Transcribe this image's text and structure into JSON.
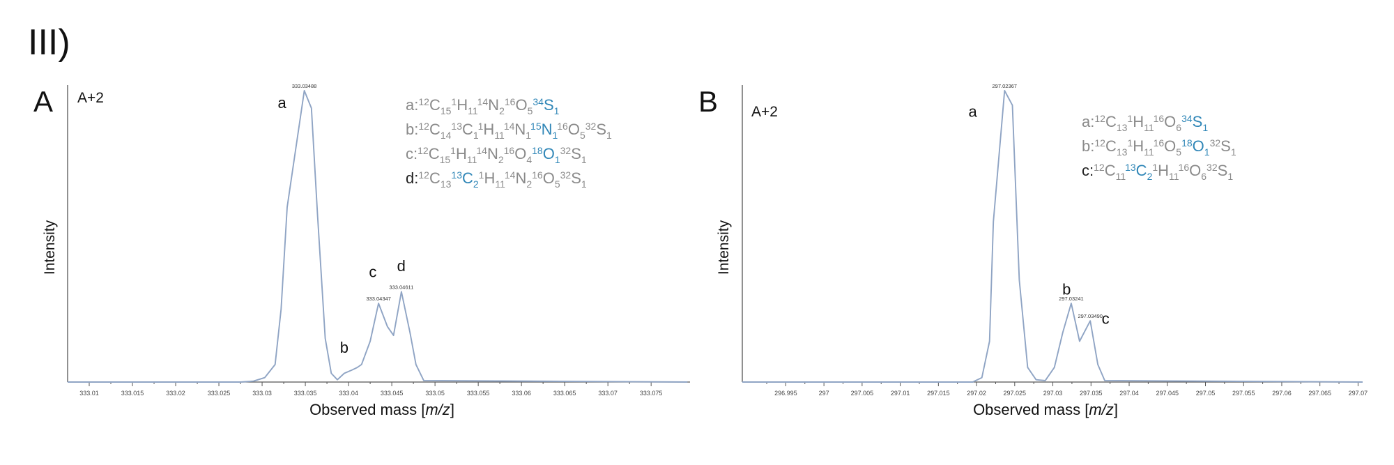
{
  "figure_label": "III)",
  "colors": {
    "trace": "#8fa4c4",
    "highlight": "#2f86b7",
    "formula_text": "#8a8a8a",
    "axis": "#555555"
  },
  "chart_data": [
    {
      "type": "line",
      "panel_label": "A",
      "corner_label": "A+2",
      "xlabel": "Observed mass",
      "xlabel_unit": "m/z",
      "ylabel": "Intensity",
      "xlim": [
        333.0075,
        333.0795
      ],
      "ylim": [
        0,
        100
      ],
      "xticks": [
        "333.01",
        "333.015",
        "333.02",
        "333.025",
        "333.03",
        "333.035",
        "333.04",
        "333.045",
        "333.05",
        "333.055",
        "333.06",
        "333.065",
        "333.07",
        "333.075"
      ],
      "series": [
        {
          "x": [
            333.0075,
            333.025,
            333.0275,
            333.029,
            333.0303,
            333.0315,
            333.0322,
            333.0329,
            333.03488,
            333.0357,
            333.0364,
            333.0373,
            333.038,
            333.0387,
            333.0395,
            333.0403,
            333.041,
            333.0415,
            333.0425,
            333.04347,
            333.0445,
            333.0452,
            333.04611,
            333.0471,
            333.0478,
            333.0487,
            333.0792
          ],
          "y": [
            0,
            0,
            0,
            0.3,
            1.5,
            6,
            25,
            60,
            100,
            94,
            58,
            15,
            3,
            0.8,
            3,
            4,
            5,
            6,
            14,
            27,
            19,
            16,
            31,
            17,
            6,
            0.5,
            0
          ]
        }
      ],
      "peak_labels": [
        {
          "x": 333.03488,
          "y": 100,
          "text": "333.03488"
        },
        {
          "x": 333.04347,
          "y": 27,
          "text": "333.04347"
        },
        {
          "x": 333.04611,
          "y": 31,
          "text": "333.04611"
        }
      ],
      "annotations": [
        {
          "text": "a",
          "x": 333.0323,
          "y": 94
        },
        {
          "text": "b",
          "x": 333.0395,
          "y": 10
        },
        {
          "text": "c",
          "x": 333.0428,
          "y": 36
        },
        {
          "text": "d",
          "x": 333.0461,
          "y": 38
        }
      ],
      "legend": [
        {
          "label": "a",
          "formula": "a:¹²C₁₅¹H₁₁¹⁴N₂¹⁶O₅³⁴S₁",
          "parts": [
            [
              "a:",
              "p"
            ],
            [
              "12",
              "s"
            ],
            [
              "C",
              "p"
            ],
            [
              "15",
              "b"
            ],
            [
              "1",
              "s"
            ],
            [
              "H",
              "p"
            ],
            [
              "11",
              "b"
            ],
            [
              "14",
              "s"
            ],
            [
              "N",
              "p"
            ],
            [
              "2",
              "b"
            ],
            [
              "16",
              "s"
            ],
            [
              "O",
              "p"
            ],
            [
              "5",
              "b"
            ],
            [
              "34",
              "s",
              "h"
            ],
            [
              "S",
              "p",
              "h"
            ],
            [
              "1",
              "b",
              "h"
            ]
          ]
        },
        {
          "label": "b",
          "formula": "b:¹²C₁₄¹³C₁¹H₁₁¹⁴N₁¹⁵N₁¹⁶O₅³²S₁",
          "parts": [
            [
              "b:",
              "p"
            ],
            [
              "12",
              "s"
            ],
            [
              "C",
              "p"
            ],
            [
              "14",
              "b"
            ],
            [
              "13",
              "s"
            ],
            [
              "C",
              "p"
            ],
            [
              "1",
              "b"
            ],
            [
              "1",
              "s"
            ],
            [
              "H",
              "p"
            ],
            [
              "11",
              "b"
            ],
            [
              "14",
              "s"
            ],
            [
              "N",
              "p"
            ],
            [
              "1",
              "b"
            ],
            [
              "15",
              "s",
              "h"
            ],
            [
              "N",
              "p",
              "h"
            ],
            [
              "1",
              "b",
              "h"
            ],
            [
              "16",
              "s"
            ],
            [
              "O",
              "p"
            ],
            [
              "5",
              "b"
            ],
            [
              "32",
              "s"
            ],
            [
              "S",
              "p"
            ],
            [
              "1",
              "b"
            ]
          ]
        },
        {
          "label": "c",
          "formula": "c:¹²C₁₅¹H₁₁¹⁴N₂¹⁶O₄¹⁸O₁³²S₁",
          "parts": [
            [
              "c:",
              "p"
            ],
            [
              "12",
              "s"
            ],
            [
              "C",
              "p"
            ],
            [
              "15",
              "b"
            ],
            [
              "1",
              "s"
            ],
            [
              "H",
              "p"
            ],
            [
              "11",
              "b"
            ],
            [
              "14",
              "s"
            ],
            [
              "N",
              "p"
            ],
            [
              "2",
              "b"
            ],
            [
              "16",
              "s"
            ],
            [
              "O",
              "p"
            ],
            [
              "4",
              "b"
            ],
            [
              "18",
              "s",
              "h"
            ],
            [
              "O",
              "p",
              "h"
            ],
            [
              "1",
              "b",
              "h"
            ],
            [
              "32",
              "s"
            ],
            [
              "S",
              "p"
            ],
            [
              "1",
              "b"
            ]
          ]
        },
        {
          "label": "d",
          "formula": "d:¹²C₁₃¹³C₂¹H₁₁¹⁴N₂¹⁶O₅³²S₁",
          "parts": [
            [
              "d:",
              "p",
              "k"
            ],
            [
              "12",
              "s"
            ],
            [
              "C",
              "p"
            ],
            [
              "13",
              "b"
            ],
            [
              "13",
              "s",
              "h"
            ],
            [
              "C",
              "p",
              "h"
            ],
            [
              "2",
              "b",
              "h"
            ],
            [
              "1",
              "s"
            ],
            [
              "H",
              "p"
            ],
            [
              "11",
              "b"
            ],
            [
              "14",
              "s"
            ],
            [
              "N",
              "p"
            ],
            [
              "2",
              "b"
            ],
            [
              "16",
              "s"
            ],
            [
              "O",
              "p"
            ],
            [
              "5",
              "b"
            ],
            [
              "32",
              "s"
            ],
            [
              "S",
              "p"
            ],
            [
              "1",
              "b"
            ]
          ]
        }
      ]
    },
    {
      "type": "line",
      "panel_label": "B",
      "corner_label": "A+2",
      "xlabel": "Observed mass",
      "xlabel_unit": "m/z",
      "ylabel": "Intensity",
      "xlim": [
        296.9893,
        297.0706
      ],
      "ylim": [
        0,
        100
      ],
      "xticks": [
        "296.995",
        "297",
        "297.005",
        "297.01",
        "297.015",
        "297.02",
        "297.025",
        "297.03",
        "297.035",
        "297.04",
        "297.045",
        "297.05",
        "297.055",
        "297.06",
        "297.065",
        "297.07"
      ],
      "series": [
        {
          "x": [
            296.9893,
            297.0195,
            297.0207,
            297.0217,
            297.0222,
            297.02367,
            297.0247,
            297.0256,
            297.0267,
            297.0278,
            297.029,
            297.0302,
            297.0313,
            297.03241,
            297.0335,
            297.0343,
            297.0349,
            297.0359,
            297.0368,
            297.0706
          ],
          "y": [
            0,
            0,
            1.5,
            14,
            55,
            100,
            95,
            35,
            5,
            0.8,
            0.5,
            5,
            17,
            27,
            14,
            18,
            21,
            6,
            0.5,
            0
          ]
        }
      ],
      "peak_labels": [
        {
          "x": 297.02367,
          "y": 100,
          "text": "297.02367"
        },
        {
          "x": 297.03241,
          "y": 27,
          "text": "297.03241"
        },
        {
          "x": 297.0349,
          "y": 21,
          "text": "297.03490"
        }
      ],
      "annotations": [
        {
          "text": "a",
          "x": 297.0195,
          "y": 91
        },
        {
          "text": "b",
          "x": 297.0318,
          "y": 30
        },
        {
          "text": "c",
          "x": 297.0369,
          "y": 20
        }
      ],
      "legend": [
        {
          "label": "a",
          "formula": "a:¹²C₁₃¹H₁₁¹⁶O₆³⁴S₁",
          "parts": [
            [
              "a:",
              "p"
            ],
            [
              "12",
              "s"
            ],
            [
              "C",
              "p"
            ],
            [
              "13",
              "b"
            ],
            [
              "1",
              "s"
            ],
            [
              "H",
              "p"
            ],
            [
              "11",
              "b"
            ],
            [
              "16",
              "s"
            ],
            [
              "O",
              "p"
            ],
            [
              "6",
              "b"
            ],
            [
              "34",
              "s",
              "h"
            ],
            [
              "S",
              "p",
              "h"
            ],
            [
              "1",
              "b",
              "h"
            ]
          ]
        },
        {
          "label": "b",
          "formula": "b:¹²C₁₃¹H₁₁¹⁶O₅¹⁸O₁³²S₁",
          "parts": [
            [
              "b:",
              "p"
            ],
            [
              "12",
              "s"
            ],
            [
              "C",
              "p"
            ],
            [
              "13",
              "b"
            ],
            [
              "1",
              "s"
            ],
            [
              "H",
              "p"
            ],
            [
              "11",
              "b"
            ],
            [
              "16",
              "s"
            ],
            [
              "O",
              "p"
            ],
            [
              "5",
              "b"
            ],
            [
              "18",
              "s",
              "h"
            ],
            [
              "O",
              "p",
              "h"
            ],
            [
              "1",
              "b",
              "h"
            ],
            [
              "32",
              "s"
            ],
            [
              "S",
              "p"
            ],
            [
              "1",
              "b"
            ]
          ]
        },
        {
          "label": "c",
          "formula": "c:¹²C₁₁¹³C₂¹H₁₁¹⁶O₆³²S₁",
          "parts": [
            [
              "c:",
              "p",
              "k"
            ],
            [
              "12",
              "s"
            ],
            [
              "C",
              "p"
            ],
            [
              "11",
              "b"
            ],
            [
              "13",
              "s",
              "h"
            ],
            [
              "C",
              "p",
              "h"
            ],
            [
              "2",
              "b",
              "h"
            ],
            [
              "1",
              "s"
            ],
            [
              "H",
              "p"
            ],
            [
              "11",
              "b"
            ],
            [
              "16",
              "s"
            ],
            [
              "O",
              "p"
            ],
            [
              "6",
              "b"
            ],
            [
              "32",
              "s"
            ],
            [
              "S",
              "p"
            ],
            [
              "1",
              "b"
            ]
          ]
        }
      ]
    }
  ]
}
